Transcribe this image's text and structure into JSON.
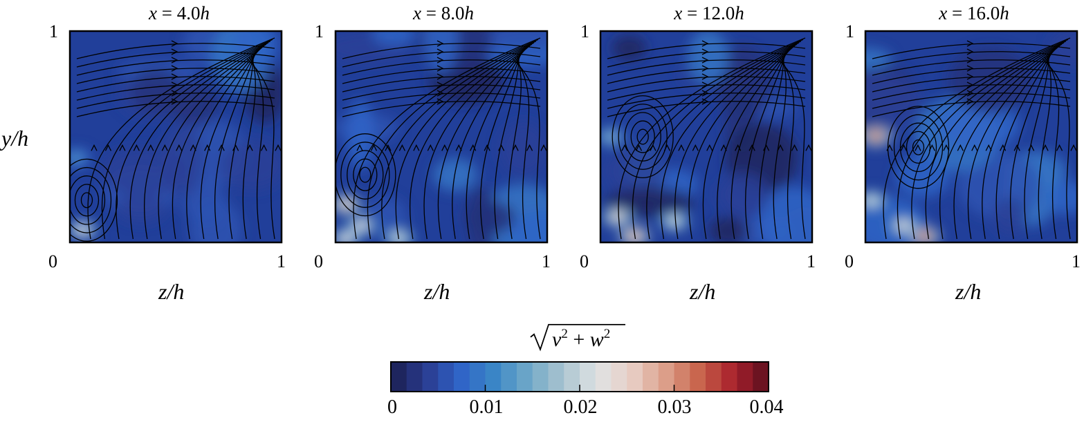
{
  "chart_data": {
    "type": "heatmap",
    "description_free": true,
    "y_axis_label": "y/h",
    "x_axis_label": "z/h",
    "y_ticks": [
      "0",
      "1"
    ],
    "x_ticks": [
      "0",
      "1"
    ],
    "xlim": [
      0,
      1
    ],
    "ylim": [
      0,
      1
    ],
    "panels": [
      {
        "title_prefix": "x = ",
        "title_value": "4.0",
        "title_unit": "h",
        "hotspots": [
          {
            "z": 0.06,
            "y": 0.06,
            "value": 0.022
          },
          {
            "z": 0.03,
            "y": 0.4,
            "value": 0.012
          }
        ]
      },
      {
        "title_prefix": "x = ",
        "title_value": "8.0",
        "title_unit": "h",
        "hotspots": [
          {
            "z": 0.05,
            "y": 0.18,
            "value": 0.026
          },
          {
            "z": 0.12,
            "y": 0.08,
            "value": 0.022
          },
          {
            "z": 0.3,
            "y": 0.02,
            "value": 0.02
          },
          {
            "z": 0.05,
            "y": 0.02,
            "value": 0.022
          }
        ]
      },
      {
        "title_prefix": "x = ",
        "title_value": "12.0",
        "title_unit": "h",
        "hotspots": [
          {
            "z": 0.08,
            "y": 0.12,
            "value": 0.024
          },
          {
            "z": 0.16,
            "y": 0.03,
            "value": 0.028
          },
          {
            "z": 0.35,
            "y": 0.1,
            "value": 0.02
          },
          {
            "z": 0.05,
            "y": 0.5,
            "value": 0.016
          }
        ]
      },
      {
        "title_prefix": "x = ",
        "title_value": "16.0",
        "title_unit": "h",
        "hotspots": [
          {
            "z": 0.05,
            "y": 0.5,
            "value": 0.03
          },
          {
            "z": 0.28,
            "y": 0.03,
            "value": 0.03
          },
          {
            "z": 0.18,
            "y": 0.08,
            "value": 0.022
          },
          {
            "z": 0.03,
            "y": 0.2,
            "value": 0.02
          }
        ]
      }
    ],
    "colorbar": {
      "label": "√(v² + w²)",
      "label_base": "v",
      "label_base2": "w",
      "label_exp": "2",
      "label_plus": "+",
      "min": 0,
      "max": 0.04,
      "tick_values": [
        0,
        0.01,
        0.02,
        0.03,
        0.04
      ],
      "tick_labels": [
        "0",
        "0.01",
        "0.02",
        "0.03",
        "0.04"
      ],
      "levels": 24,
      "colormap": [
        "#1b1f4f",
        "#2a3b8f",
        "#2f63c7",
        "#3a86c6",
        "#6fa8c8",
        "#a9c3cf",
        "#dfe3e4",
        "#e8cfc6",
        "#dc9f8a",
        "#c8624a",
        "#a8202c",
        "#5a0f1e"
      ]
    },
    "background_color": "#213f9a"
  }
}
